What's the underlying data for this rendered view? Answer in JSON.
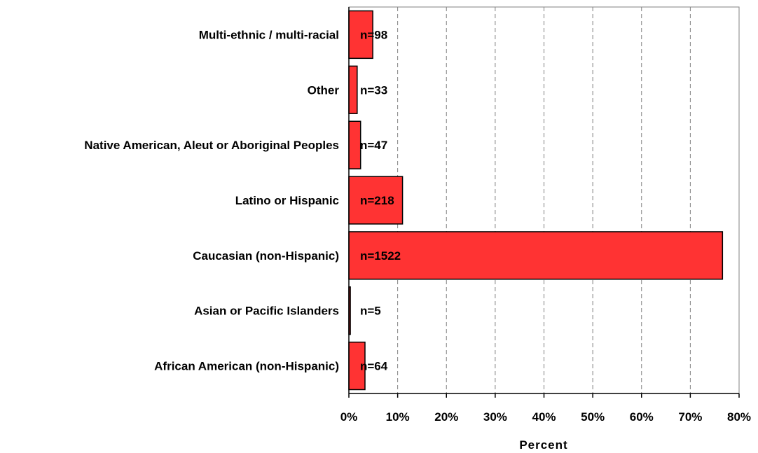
{
  "chart_data": {
    "type": "bar",
    "orientation": "horizontal",
    "title": "",
    "xlabel": "Percent",
    "ylabel": "",
    "xlim": [
      0,
      80
    ],
    "x_ticks": [
      "0%",
      "10%",
      "20%",
      "30%",
      "40%",
      "50%",
      "60%",
      "70%",
      "80%"
    ],
    "categories": [
      "Multi-ethnic / multi-racial",
      "Other",
      "Native American, Aleut or Aboriginal Peoples",
      "Latino or Hispanic",
      "Caucasian (non-Hispanic)",
      "Asian or Pacific Islanders",
      "African American (non-Hispanic)"
    ],
    "values": [
      4.9,
      1.7,
      2.4,
      11.0,
      76.6,
      0.3,
      3.3
    ],
    "n_labels": [
      "n=98",
      "n=33",
      "n=47",
      "n=218",
      "n=1522",
      "n=5",
      "n=64"
    ],
    "grid": "vertical dashed",
    "legend": "none",
    "colors": {
      "bar_fill": "#ff3333",
      "bar_stroke": "#000000",
      "grid": "#808080",
      "frame": "#808080"
    }
  }
}
